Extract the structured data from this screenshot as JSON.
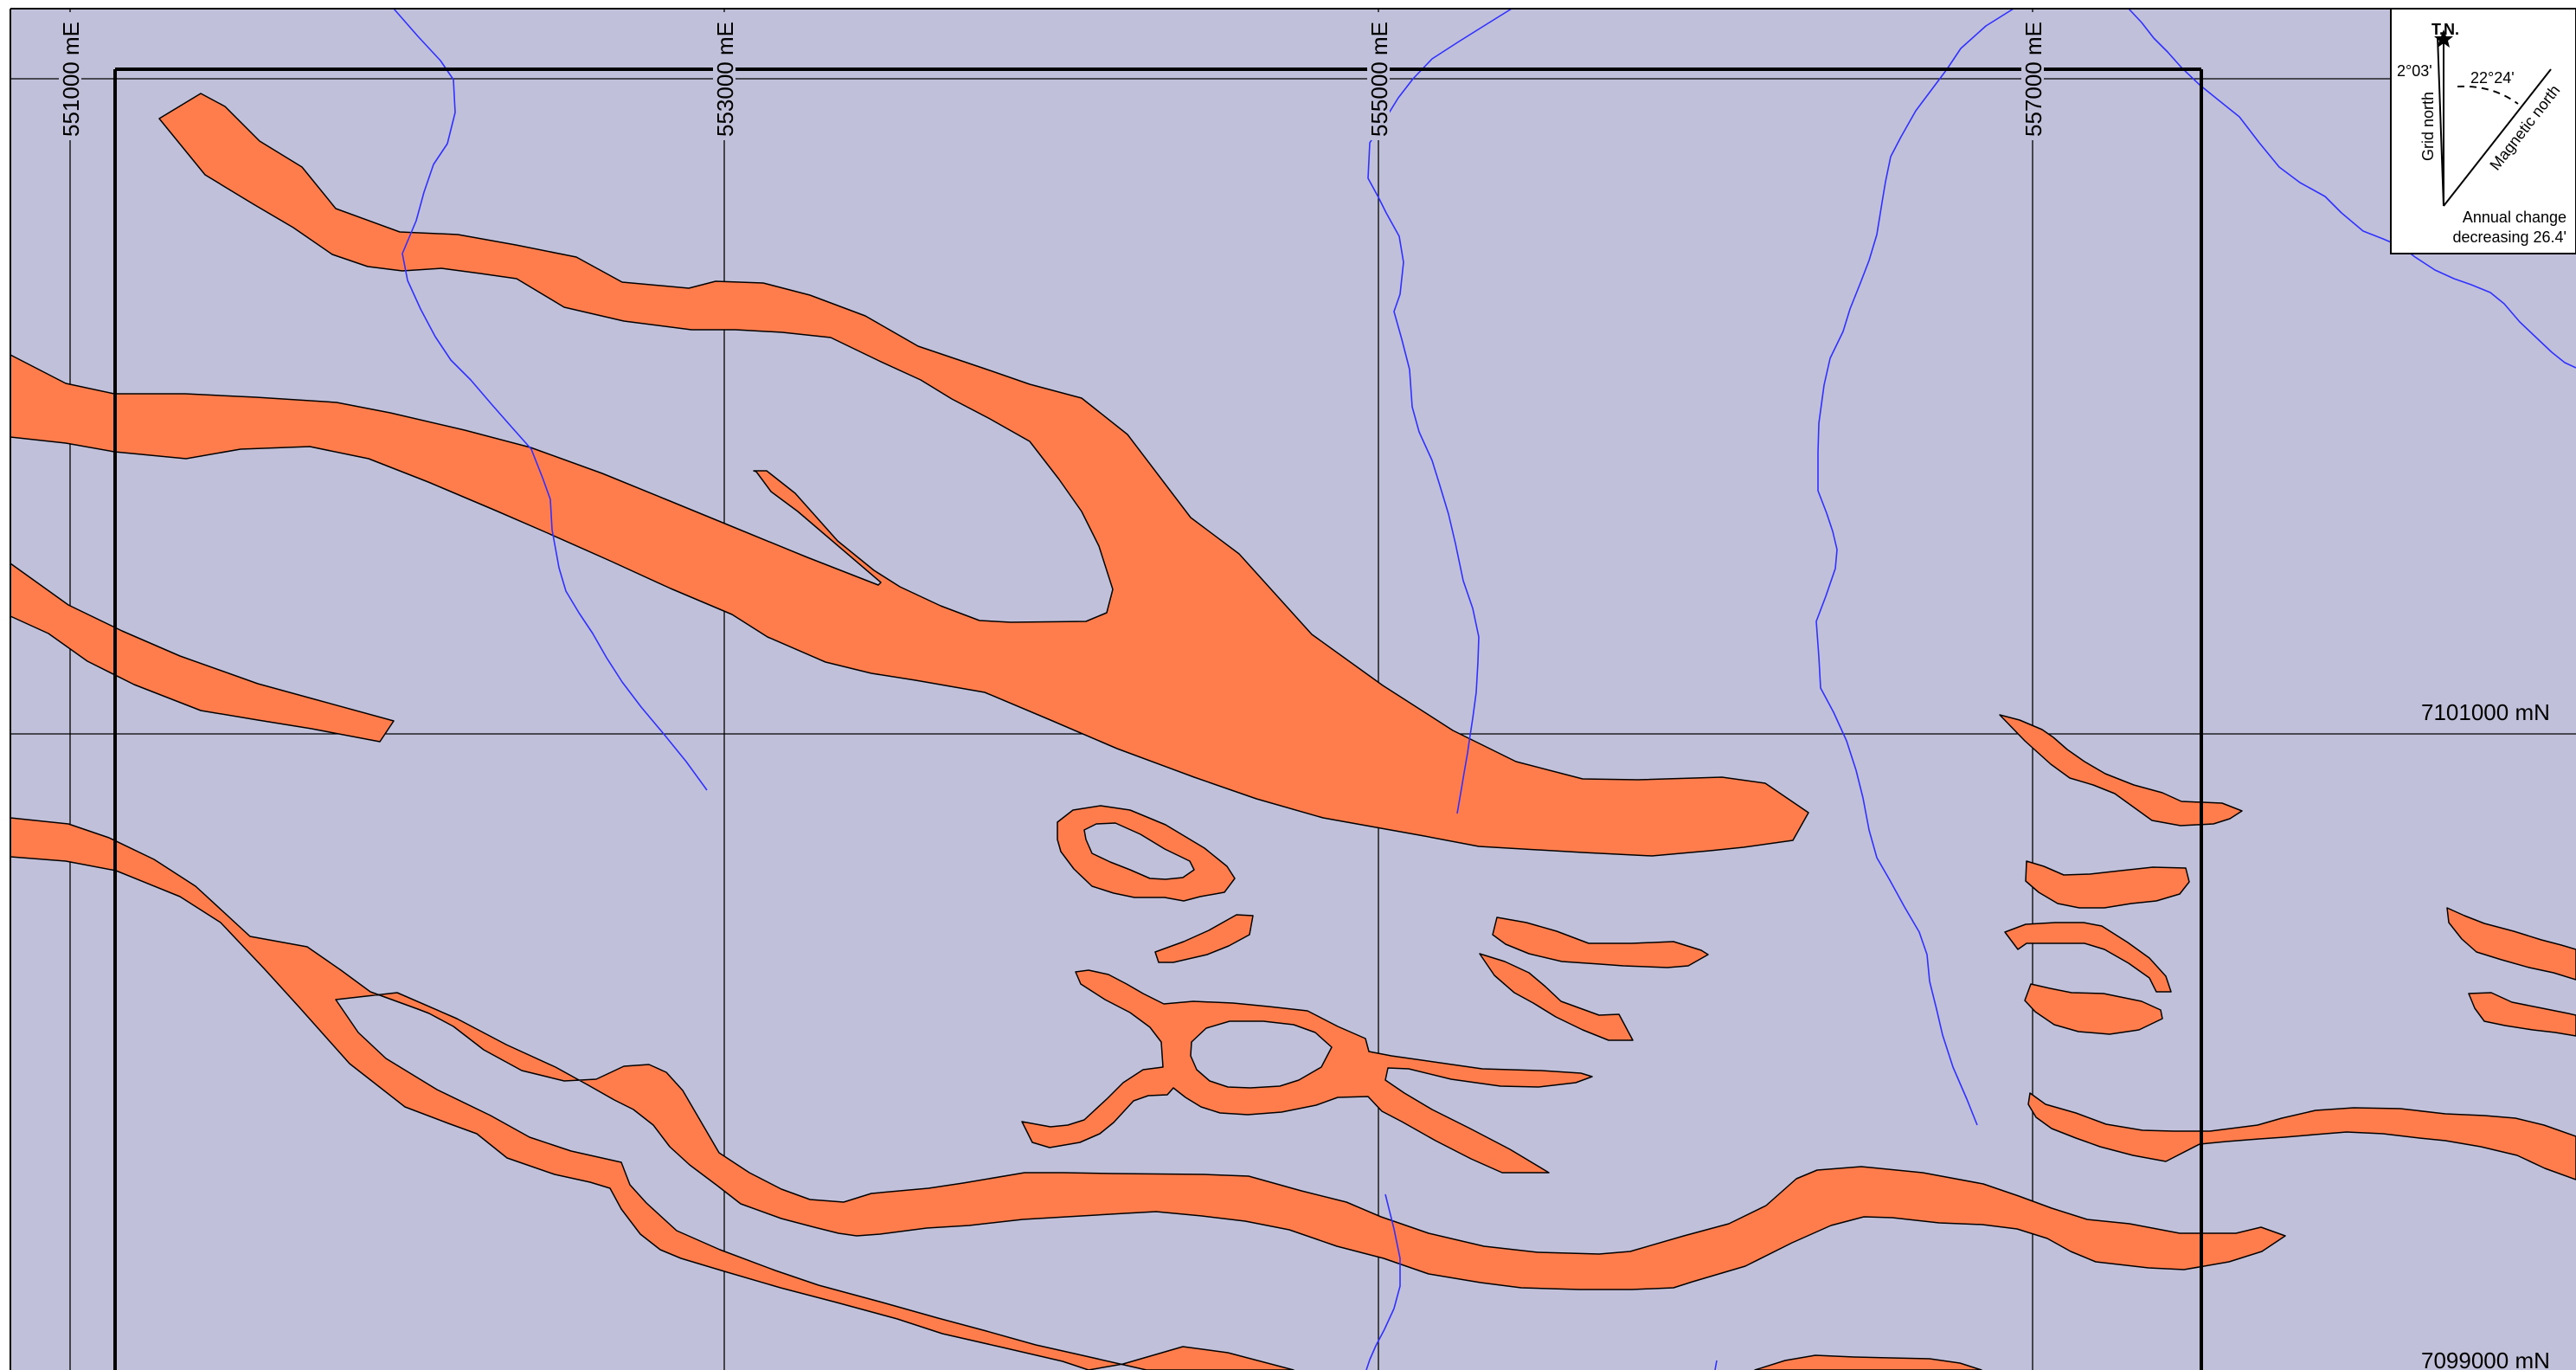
{
  "colors": {
    "background": "#c0c0da",
    "formation_fill": "#ff7c4c",
    "formation_stroke": "#000000",
    "stream": "#3030ff",
    "grid_line": "#000000",
    "frame": "#000000"
  },
  "grid": {
    "easting_labels": [
      "551000 mE",
      "553000 mE",
      "555000 mE",
      "557000 mE"
    ],
    "northing_labels": [
      "7101000 mN",
      "7099000 mN"
    ]
  },
  "north_arrow": {
    "true_north": "T.N.",
    "grid_north": "Grid north",
    "magnetic_north": "Magnetic north",
    "grid_angle": "2°03'",
    "magnetic_angle": "22°24'",
    "annual_change_line1": "Annual change",
    "annual_change_line2": "decreasing 26.4'"
  },
  "icons": {
    "north_arrow": "north-arrow-icon"
  }
}
